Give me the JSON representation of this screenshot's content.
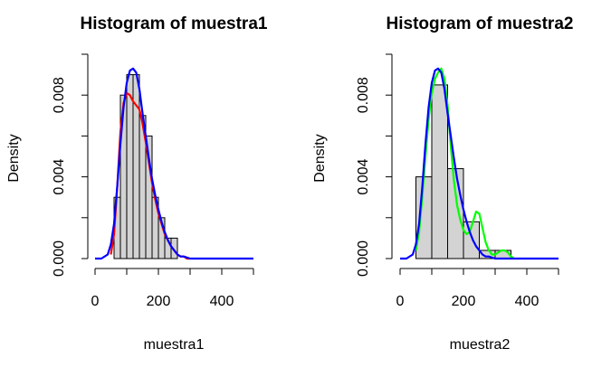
{
  "chart_data": [
    {
      "type": "histogram",
      "title": "Histogram of muestra1",
      "xlabel": "muestra1",
      "ylabel": "Density",
      "xlim": [
        0,
        500
      ],
      "ylim": [
        0,
        0.01
      ],
      "x_ticks": [
        "0",
        "200",
        "400"
      ],
      "y_ticks": [
        "0.000",
        "0.004",
        "0.008"
      ],
      "bin_edges": [
        60,
        80,
        100,
        120,
        140,
        160,
        180,
        200,
        220,
        240,
        260
      ],
      "bar_values": [
        0.003,
        0.008,
        0.009,
        0.009,
        0.007,
        0.006,
        0.003,
        0.002,
        0.001,
        0.001
      ],
      "bar_color": "#d3d3d3",
      "series": [
        {
          "color": "#ff0000",
          "x": [
            50,
            60,
            70,
            80,
            90,
            100,
            110,
            120,
            130,
            140,
            150,
            160,
            170,
            180,
            190,
            200,
            210,
            220,
            230,
            240,
            250,
            260,
            270,
            280,
            290,
            300
          ],
          "y": [
            0.0002,
            0.0012,
            0.0035,
            0.0062,
            0.0076,
            0.0081,
            0.008,
            0.0077,
            0.0075,
            0.0073,
            0.0066,
            0.0057,
            0.0047,
            0.0037,
            0.0029,
            0.0022,
            0.0017,
            0.0012,
            0.0009,
            0.0006,
            0.0004,
            0.0002,
            0.0001,
            0.0001,
            0.0,
            0.0
          ]
        },
        {
          "color": "#0000ff",
          "x": [
            0,
            20,
            40,
            50,
            60,
            70,
            80,
            90,
            100,
            110,
            120,
            130,
            140,
            150,
            160,
            170,
            180,
            190,
            200,
            210,
            220,
            230,
            240,
            250,
            260,
            270,
            280,
            300,
            350,
            400,
            450,
            500
          ],
          "y": [
            0.0,
            0.0,
            0.0002,
            0.0007,
            0.0017,
            0.0035,
            0.0056,
            0.0074,
            0.0086,
            0.0092,
            0.0093,
            0.0091,
            0.0083,
            0.0071,
            0.006,
            0.0049,
            0.0039,
            0.0031,
            0.0024,
            0.0018,
            0.0013,
            0.0009,
            0.0006,
            0.0004,
            0.0002,
            0.0001,
            0.0001,
            0.0,
            0.0,
            0.0,
            0.0,
            0.0
          ]
        }
      ]
    },
    {
      "type": "histogram",
      "title": "Histogram of muestra2",
      "xlabel": "muestra2",
      "ylabel": "Density",
      "xlim": [
        0,
        500
      ],
      "ylim": [
        0,
        0.01
      ],
      "x_ticks": [
        "0",
        "200",
        "400"
      ],
      "y_ticks": [
        "0.000",
        "0.004",
        "0.008"
      ],
      "bin_edges": [
        50,
        100,
        150,
        200,
        250,
        300,
        350
      ],
      "bar_values": [
        0.004,
        0.0085,
        0.0044,
        0.0018,
        0.0004,
        0.0004
      ],
      "bar_color": "#d3d3d3",
      "series": [
        {
          "color": "#00ff00",
          "x": [
            50,
            60,
            70,
            80,
            90,
            100,
            110,
            120,
            130,
            140,
            150,
            160,
            170,
            180,
            190,
            200,
            210,
            220,
            230,
            240,
            250,
            260,
            270,
            280,
            290,
            300,
            310,
            320,
            330,
            340,
            350,
            360
          ],
          "y": [
            0.0004,
            0.0013,
            0.003,
            0.005,
            0.0068,
            0.0081,
            0.0088,
            0.0091,
            0.0093,
            0.0088,
            0.0075,
            0.0055,
            0.0038,
            0.0026,
            0.0019,
            0.0014,
            0.0012,
            0.0013,
            0.0018,
            0.0023,
            0.0022,
            0.0015,
            0.0008,
            0.0004,
            0.0002,
            0.0002,
            0.0003,
            0.0004,
            0.0004,
            0.0003,
            0.0001,
            0.0
          ]
        },
        {
          "color": "#0000ff",
          "x": [
            0,
            20,
            40,
            50,
            60,
            70,
            80,
            90,
            100,
            110,
            120,
            130,
            140,
            150,
            160,
            170,
            180,
            190,
            200,
            210,
            220,
            230,
            240,
            250,
            260,
            270,
            280,
            300,
            350,
            400,
            450,
            500
          ],
          "y": [
            0.0,
            0.0,
            0.0002,
            0.0007,
            0.0017,
            0.0035,
            0.0056,
            0.0074,
            0.0086,
            0.0092,
            0.0093,
            0.0091,
            0.0083,
            0.0071,
            0.006,
            0.0049,
            0.0039,
            0.0031,
            0.0024,
            0.0018,
            0.0013,
            0.0009,
            0.0006,
            0.0004,
            0.0002,
            0.0001,
            0.0001,
            0.0,
            0.0,
            0.0,
            0.0,
            0.0
          ]
        }
      ]
    }
  ]
}
